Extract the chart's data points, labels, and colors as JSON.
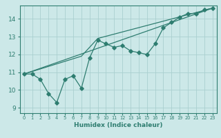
{
  "xlabel": "Humidex (Indice chaleur)",
  "ylabel": "",
  "bg_color": "#cce8e8",
  "grid_color": "#aacfcf",
  "line_color": "#2e7d70",
  "xlim": [
    -0.5,
    23.5
  ],
  "ylim": [
    8.7,
    14.75
  ],
  "xticks": [
    0,
    1,
    2,
    3,
    4,
    5,
    6,
    7,
    8,
    9,
    10,
    11,
    12,
    13,
    14,
    15,
    16,
    17,
    18,
    19,
    20,
    21,
    22,
    23
  ],
  "yticks": [
    9,
    10,
    11,
    12,
    13,
    14
  ],
  "line1_x": [
    0,
    1,
    2,
    3,
    4,
    5,
    6,
    7,
    8,
    9,
    10,
    11,
    12,
    13,
    14,
    15,
    16,
    17,
    18,
    19,
    20,
    21,
    22,
    23
  ],
  "line1_y": [
    10.9,
    10.9,
    10.6,
    9.8,
    9.3,
    10.6,
    10.8,
    10.1,
    11.8,
    12.8,
    12.6,
    12.4,
    12.5,
    12.2,
    12.1,
    12.0,
    12.6,
    13.5,
    13.8,
    14.1,
    14.3,
    14.3,
    14.5,
    14.6
  ],
  "line2_x": [
    0,
    23
  ],
  "line2_y": [
    10.9,
    14.6
  ],
  "line3_x": [
    0,
    7,
    9,
    23
  ],
  "line3_y": [
    10.9,
    11.9,
    12.9,
    14.6
  ],
  "xlabel_fontsize": 6.5,
  "ylabel_fontsize": 6,
  "xtick_fontsize": 4.8,
  "ytick_fontsize": 6.5
}
